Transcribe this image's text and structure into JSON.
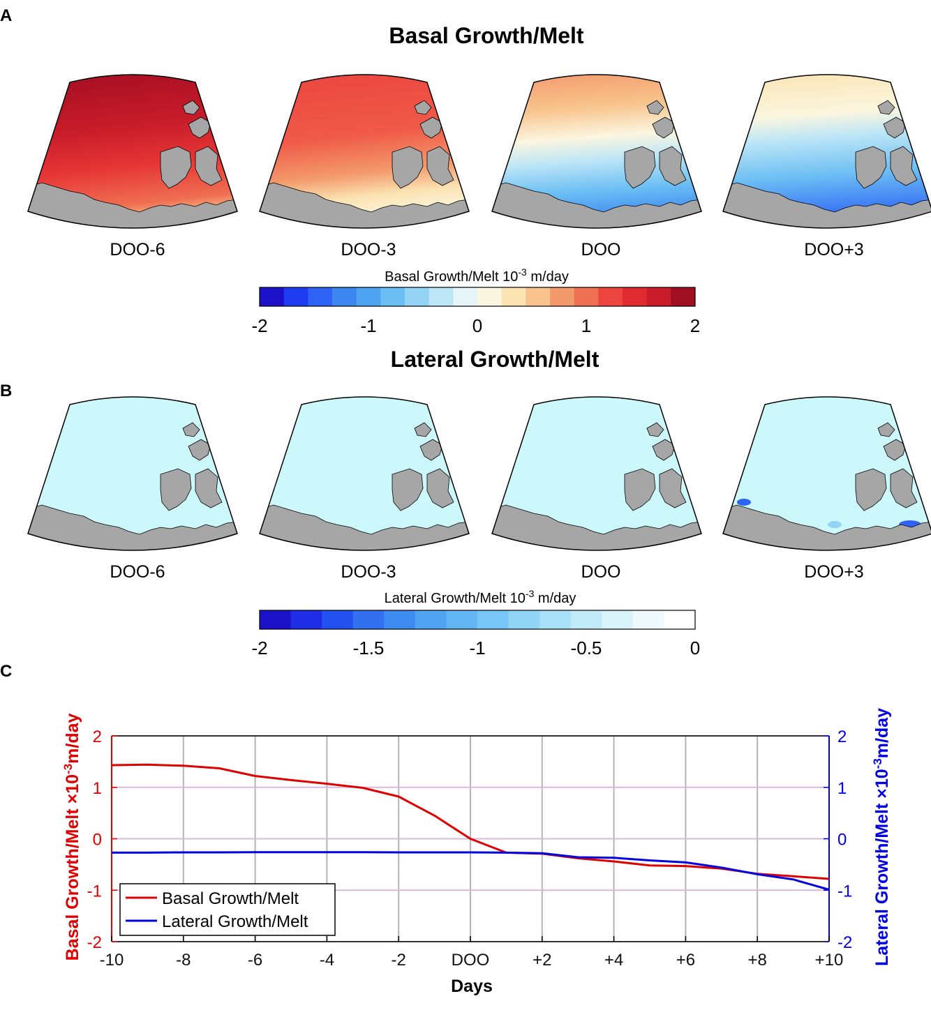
{
  "panel_a": {
    "label": "A",
    "title": "Basal Growth/Melt",
    "maps": [
      "DOO-6",
      "DOO-3",
      "DOO",
      "DOO+3"
    ],
    "colorbar": {
      "label": "Basal Growth/Melt 10",
      "label_exp": "-3",
      "label_unit": " m/day",
      "ticks": [
        "-2",
        "-1",
        "0",
        "1",
        "2"
      ],
      "colors": [
        "#1c10c8",
        "#1f3cf0",
        "#2e63f5",
        "#3c86f0",
        "#4da3f0",
        "#6bbef4",
        "#93d4f6",
        "#bde6f6",
        "#e6f6f8",
        "#fbf6df",
        "#fbe3b2",
        "#f8c38c",
        "#f39a6c",
        "#ef6f52",
        "#ec4540",
        "#e02b30",
        "#c81c2a",
        "#a00e22"
      ],
      "range": [
        -2,
        2
      ]
    }
  },
  "panel_b": {
    "label": "B",
    "title": "Lateral Growth/Melt",
    "maps": [
      "DOO-6",
      "DOO-3",
      "DOO",
      "DOO+3"
    ],
    "colorbar": {
      "label": "Lateral Growth/Melt 10",
      "label_exp": "-3",
      "label_unit": " m/day",
      "ticks": [
        "-2",
        "-1.5",
        "-1",
        "-0.5",
        "0"
      ],
      "colors": [
        "#1c10c8",
        "#1f2ee6",
        "#2550f0",
        "#3270f0",
        "#3f8cf0",
        "#4fa3f0",
        "#62b6f3",
        "#78c6f5",
        "#90d4f6",
        "#a8e0f7",
        "#c0eaf8",
        "#d8f3fa",
        "#eefafc",
        "#ffffff"
      ],
      "range": [
        -2,
        0
      ]
    }
  },
  "panel_c": {
    "label": "C"
  },
  "chart_data": {
    "type": "line",
    "xlabel": "Days",
    "ylabel_left": "Basal Growth/Melt ×10",
    "ylabel_left_exp": "-3",
    "ylabel_left_unit": "m/day",
    "ylabel_right": "Lateral Growth/Melt ×10",
    "ylabel_right_exp": "-3",
    "ylabel_right_unit": "m/day",
    "x": [
      -10,
      -9,
      -8,
      -7,
      -6,
      -5,
      -4,
      -3,
      -2,
      -1,
      0,
      1,
      2,
      3,
      4,
      5,
      6,
      7,
      8,
      9,
      10
    ],
    "xlim": [
      -10,
      10
    ],
    "xticks": [
      -10,
      -8,
      -6,
      -4,
      -2,
      0,
      2,
      4,
      6,
      8,
      10
    ],
    "xtick_labels": [
      "-10",
      "-8",
      "-6",
      "-4",
      "-2",
      "DOO",
      "+2",
      "+4",
      "+6",
      "+8",
      "+10"
    ],
    "ylim_left": [
      -2,
      2
    ],
    "ylim_right": [
      -2,
      2
    ],
    "yticks": [
      "2",
      "1",
      "0",
      "-1",
      "-2"
    ],
    "grid": true,
    "legend_position": "bottom-left",
    "series": [
      {
        "name": "Basal Growth/Melt",
        "axis": "left",
        "color": "#e00000",
        "values": [
          1.43,
          1.44,
          1.42,
          1.37,
          1.22,
          1.14,
          1.07,
          0.99,
          0.82,
          0.45,
          0.0,
          -0.27,
          -0.29,
          -0.38,
          -0.44,
          -0.52,
          -0.53,
          -0.58,
          -0.68,
          -0.73,
          -0.78
        ]
      },
      {
        "name": "Lateral Growth/Melt",
        "axis": "right",
        "color": "#0000e0",
        "values": [
          -0.27,
          -0.27,
          -0.265,
          -0.265,
          -0.26,
          -0.26,
          -0.26,
          -0.26,
          -0.265,
          -0.265,
          -0.265,
          -0.27,
          -0.28,
          -0.36,
          -0.37,
          -0.42,
          -0.46,
          -0.56,
          -0.69,
          -0.79,
          -0.99
        ]
      }
    ]
  }
}
